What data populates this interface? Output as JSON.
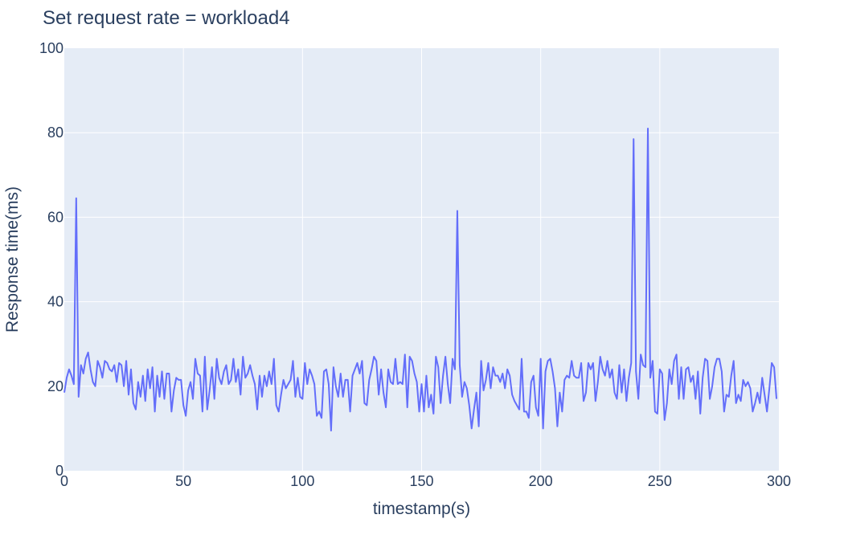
{
  "chart_data": {
    "type": "line",
    "title": "Set request rate = workload4",
    "xlabel": "timestamp(s)",
    "ylabel": "Response time(ms)",
    "xlim": [
      0,
      300
    ],
    "ylim": [
      0,
      100
    ],
    "xticks": [
      "0",
      "50",
      "100",
      "150",
      "200",
      "250",
      "300"
    ],
    "yticks": [
      "0",
      "20",
      "40",
      "60",
      "80",
      "100"
    ],
    "grid": true,
    "colors": {
      "line": "#636efa",
      "plot_bg": "#e5ecf6",
      "grid": "#ffffff",
      "text": "#2a3f5f"
    },
    "series": [
      {
        "x": [
          0,
          1,
          2,
          3,
          4,
          5,
          6,
          7,
          8,
          9,
          10,
          11,
          12,
          13,
          14,
          15,
          16,
          17,
          18,
          19,
          20,
          21,
          22,
          23,
          24,
          25,
          26,
          27,
          28,
          29,
          30,
          31,
          32,
          33,
          34,
          35,
          36,
          37,
          38,
          39,
          40,
          41,
          42,
          43,
          44,
          45,
          46,
          47,
          48,
          49,
          50,
          51,
          52,
          53,
          54,
          55,
          56,
          57,
          58,
          59,
          60,
          61,
          62,
          63,
          64,
          65,
          66,
          67,
          68,
          69,
          70,
          71,
          72,
          73,
          74,
          75,
          76,
          77,
          78,
          79,
          80,
          81,
          82,
          83,
          84,
          85,
          86,
          87,
          88,
          89,
          90,
          91,
          92,
          93,
          94,
          95,
          96,
          97,
          98,
          99,
          100,
          101,
          102,
          103,
          104,
          105,
          106,
          107,
          108,
          109,
          110,
          111,
          112,
          113,
          114,
          115,
          116,
          117,
          118,
          119,
          120,
          121,
          122,
          123,
          124,
          125,
          126,
          127,
          128,
          129,
          130,
          131,
          132,
          133,
          134,
          135,
          136,
          137,
          138,
          139,
          140,
          141,
          142,
          143,
          144,
          145,
          146,
          147,
          148,
          149,
          150,
          151,
          152,
          153,
          154,
          155,
          156,
          157,
          158,
          159,
          160,
          161,
          162,
          163,
          164,
          165,
          166,
          167,
          168,
          169,
          170,
          171,
          172,
          173,
          174,
          175,
          176,
          177,
          178,
          179,
          180,
          181,
          182,
          183,
          184,
          185,
          186,
          187,
          188,
          189,
          190,
          191,
          192,
          193,
          194,
          195,
          196,
          197,
          198,
          199,
          200,
          201,
          202,
          203,
          204,
          205,
          206,
          207,
          208,
          209,
          210,
          211,
          212,
          213,
          214,
          215,
          216,
          217,
          218,
          219,
          220,
          221,
          222,
          223,
          224,
          225,
          226,
          227,
          228,
          229,
          230,
          231,
          232,
          233,
          234,
          235,
          236,
          237,
          238,
          239,
          240,
          241,
          242,
          243,
          244,
          245,
          246,
          247,
          248,
          249,
          250,
          251,
          252,
          253,
          254,
          255,
          256,
          257,
          258,
          259,
          260,
          261,
          262,
          263,
          264,
          265,
          266,
          267,
          268,
          269,
          270,
          271,
          272,
          273,
          274,
          275,
          276,
          277,
          278,
          279,
          280,
          281,
          282,
          283,
          284,
          285,
          286,
          287,
          288,
          289,
          290,
          291,
          292,
          293,
          294,
          295,
          296,
          297,
          298,
          299
        ],
        "values": [
          18.5,
          22,
          24,
          22.5,
          20.5,
          64.5,
          17.5,
          25,
          23,
          26.5,
          28,
          24,
          21,
          20,
          26,
          24.5,
          22,
          26,
          25.5,
          24,
          23.5,
          25,
          21,
          25.5,
          25,
          20,
          26,
          18,
          24,
          16,
          14.5,
          21,
          17.5,
          22.5,
          16.5,
          24,
          19.5,
          24.5,
          14,
          22.5,
          17.5,
          23.5,
          17,
          23,
          23,
          14,
          19,
          22,
          21.5,
          21.5,
          15.5,
          13,
          19,
          21,
          17,
          26.5,
          23,
          22.5,
          14,
          27,
          14.5,
          19,
          24.5,
          17,
          26.5,
          22,
          20.5,
          23.5,
          25,
          20.5,
          21.5,
          26.5,
          21,
          24,
          18,
          27,
          22,
          23,
          25,
          22.5,
          20.5,
          14.5,
          22.5,
          17.5,
          22.5,
          20,
          23.5,
          20.5,
          26.5,
          15.5,
          14,
          18,
          21.5,
          19.5,
          20.5,
          21.5,
          26,
          17.5,
          22,
          17.5,
          17,
          25.5,
          20.5,
          24,
          22.5,
          20.5,
          13,
          14,
          12.5,
          23.5,
          24,
          20.5,
          9.5,
          24.5,
          20,
          17.5,
          23,
          17.5,
          21.5,
          21.5,
          14,
          22.5,
          24,
          25.5,
          23,
          26,
          16,
          15.5,
          21.5,
          24,
          27,
          26,
          18,
          24,
          18.5,
          15,
          24,
          21,
          20.5,
          26.5,
          20.5,
          21,
          20.5,
          27.5,
          15,
          27,
          26,
          23,
          21,
          14,
          20.5,
          14,
          22.5,
          15,
          18,
          13.5,
          27,
          24.5,
          16,
          22.5,
          27,
          20.5,
          16,
          26.5,
          24,
          61.5,
          25,
          17.5,
          21,
          19.5,
          15.5,
          10,
          14.5,
          18.5,
          10.5,
          26,
          19,
          21.5,
          25.5,
          19.5,
          24.5,
          22.5,
          22.5,
          21,
          23,
          19.5,
          24,
          22.5,
          18,
          16.5,
          15.5,
          14.5,
          26.5,
          14,
          14,
          12.5,
          21,
          22.5,
          15,
          13,
          26.5,
          10,
          23.5,
          26,
          26.5,
          23.5,
          19.5,
          10.5,
          18.5,
          14,
          21.5,
          22.5,
          22,
          26,
          22.5,
          22,
          22,
          25.5,
          16.5,
          18.5,
          25.5,
          24,
          25.5,
          16.5,
          21,
          27,
          24,
          22.5,
          26,
          22,
          24,
          18.5,
          17,
          25,
          18.5,
          24,
          16.5,
          22,
          25.5,
          78.5,
          23.5,
          17,
          27.5,
          25,
          24.5,
          81,
          22,
          26,
          14,
          13.5,
          24,
          23,
          12,
          16,
          24,
          20.5,
          26,
          27.5,
          17,
          24.5,
          17,
          24,
          24.5,
          21,
          22.5,
          17,
          23.5,
          13.5,
          22,
          26.5,
          26,
          17,
          20,
          24.5,
          26.5,
          26.5,
          23.5,
          14,
          18,
          17.5,
          22.5,
          26,
          16,
          18,
          16.5,
          21.5,
          20,
          21,
          19.5,
          14,
          16,
          18.5,
          16,
          22,
          18,
          14,
          19.5,
          25.5,
          24.5,
          17
        ]
      }
    ]
  }
}
